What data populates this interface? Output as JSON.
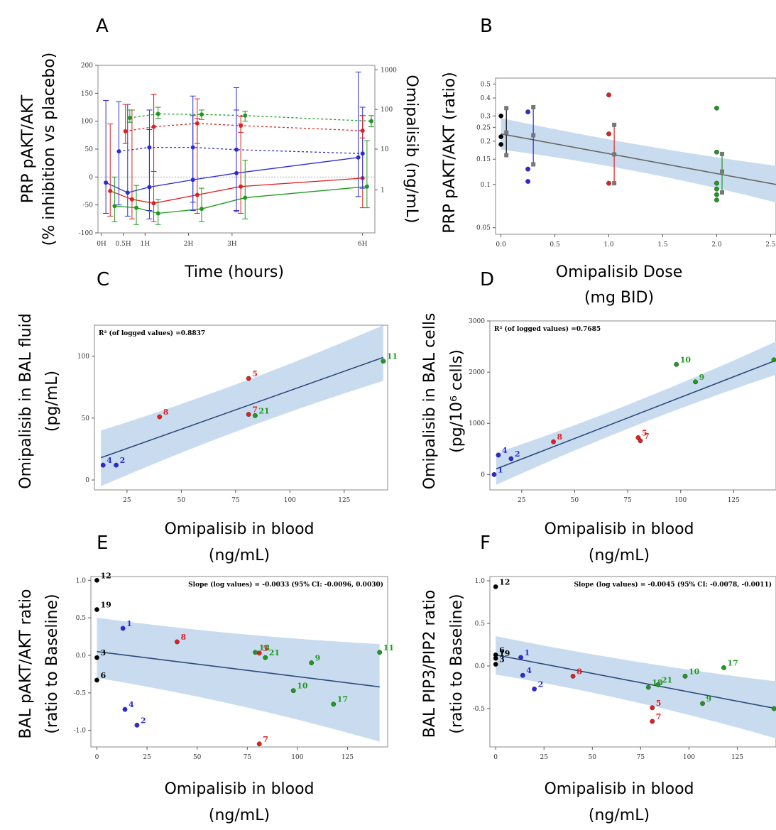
{
  "colors": {
    "blue": "#2b2bd6",
    "red": "#e02020",
    "green": "#1e9a1e",
    "black": "#000000",
    "band": "#c9dcef",
    "line": "#2c4a7a",
    "gray": "#666666"
  },
  "chart_data": [
    {
      "panel": "A",
      "type": "line",
      "xlabel": "Time (hours)",
      "ylabel": [
        "PRP pAKT/AKT",
        "(% inhibition vs placebo)"
      ],
      "ylabel_right": "Omipalisib (ng/mL)",
      "x_categories": [
        "0H",
        "0.5H",
        "1H",
        "2H",
        "3H",
        "6H"
      ],
      "x": [
        0,
        0.5,
        1,
        2,
        3,
        6
      ],
      "ylim": [
        -100,
        200
      ],
      "yticks": [
        -100,
        -50,
        0,
        50,
        100,
        150,
        200
      ],
      "y2ticks": [
        "1",
        "10",
        "100",
        "1000"
      ],
      "series": [
        {
          "color": "blue",
          "axis": "left",
          "style": "solid",
          "x": [
            0.1,
            0.6,
            1.1,
            2.1,
            3.1,
            5.9
          ],
          "y": [
            -10,
            -28,
            -18,
            -5,
            7,
            35
          ],
          "lo": [
            -65,
            -70,
            -75,
            -60,
            -62,
            -35
          ],
          "hi": [
            137,
            130,
            85,
            145,
            160,
            188
          ]
        },
        {
          "color": "red",
          "axis": "left",
          "style": "solid",
          "x": [
            0.2,
            0.7,
            1.2,
            2.2,
            3.2,
            6.0
          ],
          "y": [
            -25,
            -40,
            -47,
            -32,
            -17,
            -2
          ],
          "lo": [
            -70,
            -75,
            -80,
            -65,
            -65,
            -55
          ],
          "hi": [
            95,
            120,
            148,
            105,
            95,
            110
          ]
        },
        {
          "color": "green",
          "axis": "left",
          "style": "solid",
          "x": [
            0.3,
            0.8,
            1.3,
            2.3,
            3.3,
            6.1
          ],
          "y": [
            -52,
            -55,
            -65,
            -57,
            -37,
            -17
          ],
          "lo": [
            -80,
            -85,
            -85,
            -80,
            -75,
            -55
          ],
          "hi": [
            0,
            -15,
            -40,
            -20,
            30,
            65
          ]
        },
        {
          "color": "blue",
          "axis": "right",
          "style": "dashed",
          "x": [
            0.4,
            1.1,
            2.1,
            3.1,
            6.0
          ],
          "y": [
            46,
            53,
            53,
            49,
            42
          ],
          "lo": [
            -50,
            -60,
            -45,
            -60,
            -20
          ],
          "hi": [
            135,
            120,
            110,
            120,
            125
          ]
        },
        {
          "color": "red",
          "axis": "right",
          "style": "dashed",
          "x": [
            0.55,
            1.2,
            2.2,
            3.2,
            6.0
          ],
          "y": [
            82,
            90,
            96,
            92,
            83
          ],
          "lo": [
            60,
            10,
            60,
            80,
            70
          ],
          "hi": [
            130,
            148,
            140,
            108,
            110
          ]
        },
        {
          "color": "green",
          "axis": "right",
          "style": "dashed",
          "x": [
            0.65,
            1.3,
            2.3,
            3.3,
            6.2
          ],
          "y": [
            106,
            113,
            112,
            110,
            100
          ],
          "lo": [
            98,
            105,
            103,
            100,
            90
          ],
          "hi": [
            120,
            125,
            120,
            118,
            110
          ]
        }
      ]
    },
    {
      "panel": "B",
      "type": "scatter",
      "xlabel": [
        "Omipalisib Dose",
        "(mg BID)"
      ],
      "ylabel": "PRP pAKT/AKT (ratio)",
      "xlim": [
        -0.05,
        2.55
      ],
      "xticks": [
        "0.0",
        "0.5",
        "1.0",
        "1.5",
        "2.0",
        "2.5"
      ],
      "ylim": [
        0.045,
        0.55
      ],
      "yscale": "log",
      "yticks": [
        "0.05",
        "0.1",
        "0.15",
        "0.2",
        "0.25",
        "0.3",
        "0.4",
        "0.5"
      ],
      "points": [
        {
          "x": 0.0,
          "y": 0.3,
          "c": "black"
        },
        {
          "x": 0.0,
          "y": 0.215,
          "c": "black"
        },
        {
          "x": 0.0,
          "y": 0.19,
          "c": "black"
        },
        {
          "x": 0.25,
          "y": 0.32,
          "c": "blue"
        },
        {
          "x": 0.25,
          "y": 0.128,
          "c": "blue"
        },
        {
          "x": 0.25,
          "y": 0.105,
          "c": "blue"
        },
        {
          "x": 1.0,
          "y": 0.42,
          "c": "red"
        },
        {
          "x": 1.0,
          "y": 0.225,
          "c": "red"
        },
        {
          "x": 1.0,
          "y": 0.102,
          "c": "red"
        },
        {
          "x": 2.0,
          "y": 0.34,
          "c": "green"
        },
        {
          "x": 2.0,
          "y": 0.168,
          "c": "green"
        },
        {
          "x": 2.0,
          "y": 0.102,
          "c": "green"
        },
        {
          "x": 2.0,
          "y": 0.093,
          "c": "green"
        },
        {
          "x": 2.0,
          "y": 0.085,
          "c": "green"
        },
        {
          "x": 2.0,
          "y": 0.078,
          "c": "green"
        }
      ],
      "ranges": [
        {
          "x": 0.05,
          "lo": 0.16,
          "mid": 0.23,
          "hi": 0.34,
          "c": "black"
        },
        {
          "x": 0.3,
          "lo": 0.138,
          "mid": 0.22,
          "hi": 0.345,
          "c": "blue"
        },
        {
          "x": 1.05,
          "lo": 0.102,
          "mid": 0.162,
          "hi": 0.26,
          "c": "red"
        },
        {
          "x": 2.05,
          "lo": 0.088,
          "mid": 0.123,
          "hi": 0.163,
          "c": "green"
        }
      ],
      "fit": {
        "x": [
          0.0,
          2.55
        ],
        "y": [
          0.225,
          0.1
        ],
        "band_lo": [
          0.175,
          0.075
        ],
        "band_hi": [
          0.29,
          0.135
        ]
      }
    },
    {
      "panel": "C",
      "type": "scatter",
      "xlabel": [
        "Omipalisib in blood",
        "(ng/mL)"
      ],
      "ylabel": [
        "Omipalisib in BAL fluid",
        "(pg/mL)"
      ],
      "annotation": "R² (of logged values)    =0.8837",
      "xlim": [
        10,
        145
      ],
      "xticks": [
        25,
        50,
        75,
        100,
        125
      ],
      "ylim": [
        -8,
        125
      ],
      "yticks": [
        0,
        50,
        100
      ],
      "points": [
        {
          "x": 14,
          "y": 12,
          "c": "blue",
          "label": "4"
        },
        {
          "x": 20,
          "y": 12,
          "c": "blue",
          "label": "2"
        },
        {
          "x": 40,
          "y": 51,
          "c": "red",
          "label": "8"
        },
        {
          "x": 81,
          "y": 82,
          "c": "red",
          "label": "5"
        },
        {
          "x": 81,
          "y": 53,
          "c": "red",
          "label": "7"
        },
        {
          "x": 84,
          "y": 52,
          "c": "green",
          "label": "21"
        },
        {
          "x": 143,
          "y": 96,
          "c": "green",
          "label": "11"
        }
      ],
      "fit": {
        "x": [
          13,
          143
        ],
        "y": [
          18,
          99
        ],
        "band_lo": [
          -5,
          80
        ],
        "band_hi": [
          40,
          125
        ]
      }
    },
    {
      "panel": "D",
      "type": "scatter",
      "xlabel": [
        "Omipalisib in blood",
        "(ng/mL)"
      ],
      "ylabel": [
        "Omipalisib in BAL cells",
        "(pg/10⁶ cells)"
      ],
      "annotation": "R² (of logged values)    =0.7685",
      "xlim": [
        10,
        145
      ],
      "xticks": [
        25,
        50,
        75,
        100,
        125
      ],
      "ylim": [
        -300,
        3000
      ],
      "yticks": [
        0,
        1000,
        2000,
        3000
      ],
      "points": [
        {
          "x": 12,
          "y": 0,
          "c": "blue",
          "label": "1"
        },
        {
          "x": 14,
          "y": 380,
          "c": "blue",
          "label": "4"
        },
        {
          "x": 20,
          "y": 310,
          "c": "blue",
          "label": "2"
        },
        {
          "x": 40,
          "y": 640,
          "c": "red",
          "label": "8"
        },
        {
          "x": 80,
          "y": 720,
          "c": "red",
          "label": "5"
        },
        {
          "x": 81,
          "y": 660,
          "c": "red",
          "label": "7"
        },
        {
          "x": 98,
          "y": 2150,
          "c": "green",
          "label": "10"
        },
        {
          "x": 107,
          "y": 1810,
          "c": "green",
          "label": "9"
        },
        {
          "x": 144,
          "y": 2240,
          "c": "green",
          "label": "11"
        }
      ],
      "fit": {
        "x": [
          13,
          145
        ],
        "y": [
          110,
          2230
        ],
        "band_lo": [
          -200,
          1950
        ],
        "band_hi": [
          420,
          2600
        ]
      }
    },
    {
      "panel": "E",
      "type": "scatter",
      "xlabel": [
        "Omipalisib in blood",
        "(ng/mL)"
      ],
      "ylabel": [
        "BAL pAKT/AKT ratio",
        "(ratio to Baseline)"
      ],
      "annotation": "Slope (log values) = -0.0033 (95% CI: -0.0096, 0.0030)",
      "xlim": [
        -3,
        145
      ],
      "xticks": [
        0,
        25,
        50,
        75,
        100,
        125
      ],
      "ylim": [
        -1.22,
        1.05
      ],
      "yticks": [
        "-1.0",
        "-0.5",
        "0.0",
        "0.5",
        "1.0"
      ],
      "points": [
        {
          "x": 0,
          "y": 1.0,
          "c": "black",
          "label": "12"
        },
        {
          "x": 0,
          "y": 0.61,
          "c": "black",
          "label": "19"
        },
        {
          "x": 0,
          "y": -0.03,
          "c": "black",
          "label": "3"
        },
        {
          "x": 0,
          "y": -0.33,
          "c": "black",
          "label": "6"
        },
        {
          "x": 13,
          "y": 0.36,
          "c": "blue",
          "label": "1"
        },
        {
          "x": 14,
          "y": -0.72,
          "c": "blue",
          "label": "4"
        },
        {
          "x": 20,
          "y": -0.93,
          "c": "blue",
          "label": "2"
        },
        {
          "x": 40,
          "y": 0.18,
          "c": "red",
          "label": "8"
        },
        {
          "x": 81,
          "y": 0.03,
          "c": "red",
          "label": "5"
        },
        {
          "x": 81,
          "y": -1.18,
          "c": "red",
          "label": "7"
        },
        {
          "x": 79,
          "y": 0.04,
          "c": "green",
          "label": "18"
        },
        {
          "x": 84,
          "y": -0.03,
          "c": "green",
          "label": "21"
        },
        {
          "x": 98,
          "y": -0.47,
          "c": "green",
          "label": "10"
        },
        {
          "x": 107,
          "y": -0.1,
          "c": "green",
          "label": "9"
        },
        {
          "x": 118,
          "y": -0.65,
          "c": "green",
          "label": "17"
        },
        {
          "x": 141,
          "y": 0.04,
          "c": "green",
          "label": "11"
        }
      ],
      "fit": {
        "x": [
          0,
          141
        ],
        "y": [
          0.05,
          -0.42
        ],
        "band_lo": [
          -0.3,
          -1.15
        ],
        "band_hi": [
          0.5,
          0.15
        ]
      }
    },
    {
      "panel": "F",
      "type": "scatter",
      "xlabel": [
        "Omipalisib in blood",
        "(ng/mL)"
      ],
      "ylabel": [
        "BAL PIP3/PIP2 ratio",
        "(ratio to Baseline)"
      ],
      "annotation": "Slope (log values) = -0.0045 (95% CI: -0.0078, -0.0011)",
      "xlim": [
        -3,
        145
      ],
      "xticks": [
        0,
        25,
        50,
        75,
        100,
        125
      ],
      "ylim": [
        -0.95,
        1.05
      ],
      "yticks": [
        "-0.5",
        "0.0",
        "0.5",
        "1.0"
      ],
      "points": [
        {
          "x": 0,
          "y": 0.93,
          "c": "black",
          "label": "12"
        },
        {
          "x": 0,
          "y": 0.13,
          "c": "black",
          "label": "6"
        },
        {
          "x": 0,
          "y": 0.09,
          "c": "black",
          "label": "19"
        },
        {
          "x": 0,
          "y": 0.02,
          "c": "black",
          "label": "3"
        },
        {
          "x": 13,
          "y": 0.1,
          "c": "blue",
          "label": "1"
        },
        {
          "x": 14,
          "y": -0.11,
          "c": "blue",
          "label": "4"
        },
        {
          "x": 20,
          "y": -0.27,
          "c": "blue",
          "label": "2"
        },
        {
          "x": 40,
          "y": -0.12,
          "c": "red",
          "label": "8"
        },
        {
          "x": 81,
          "y": -0.49,
          "c": "red",
          "label": "5"
        },
        {
          "x": 81,
          "y": -0.65,
          "c": "red",
          "label": "7"
        },
        {
          "x": 79,
          "y": -0.25,
          "c": "green",
          "label": "18"
        },
        {
          "x": 84,
          "y": -0.22,
          "c": "green",
          "label": "21"
        },
        {
          "x": 98,
          "y": -0.12,
          "c": "green",
          "label": "10"
        },
        {
          "x": 107,
          "y": -0.44,
          "c": "green",
          "label": "9"
        },
        {
          "x": 118,
          "y": -0.02,
          "c": "green",
          "label": "17"
        },
        {
          "x": 144,
          "y": -0.5,
          "c": "green",
          "label": "11"
        }
      ],
      "fit": {
        "x": [
          0,
          145
        ],
        "y": [
          0.13,
          -0.5
        ],
        "band_lo": [
          -0.1,
          -0.85
        ],
        "band_hi": [
          0.35,
          -0.18
        ]
      }
    }
  ]
}
